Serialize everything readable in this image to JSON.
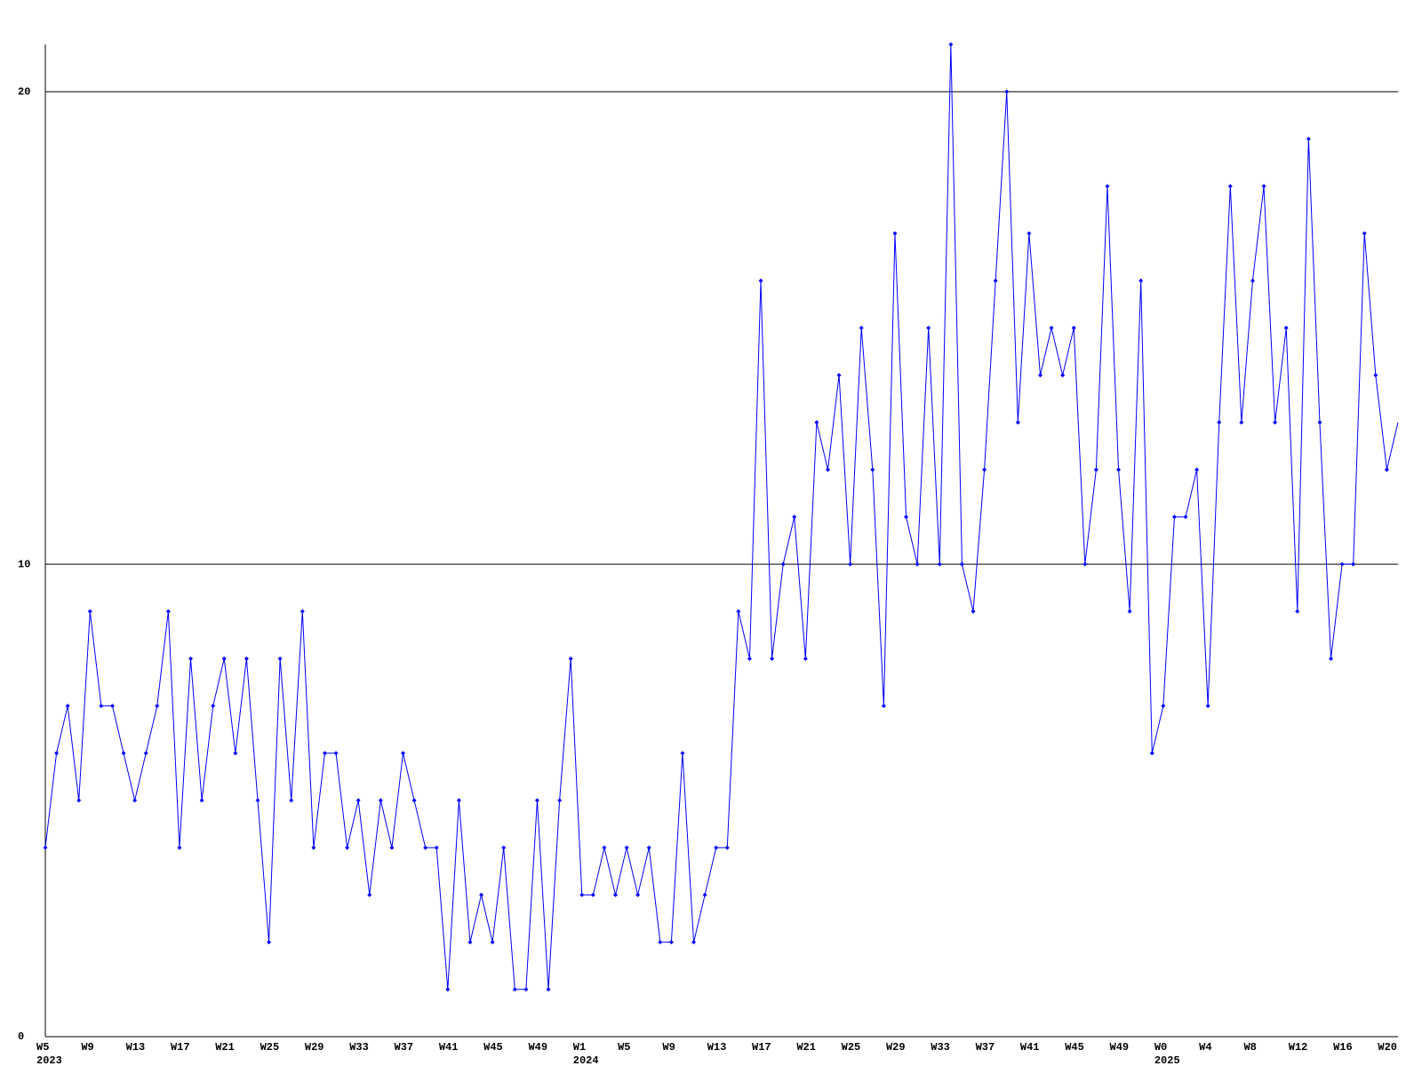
{
  "chart_data": {
    "type": "line",
    "color": "#0000ff",
    "categories": [
      "W5",
      null,
      null,
      null,
      "W9",
      null,
      null,
      null,
      "W13",
      null,
      null,
      null,
      "W17",
      null,
      null,
      null,
      "W21",
      null,
      null,
      null,
      "W25",
      null,
      null,
      null,
      "W29",
      null,
      null,
      null,
      "W33",
      null,
      null,
      null,
      "W37",
      null,
      null,
      null,
      "W41",
      null,
      null,
      null,
      "W45",
      null,
      null,
      null,
      "W49",
      null,
      null,
      null,
      "W1",
      null,
      null,
      null,
      "W5",
      null,
      null,
      null,
      "W9",
      null,
      null,
      null,
      "W13",
      null,
      null,
      null,
      "W17",
      null,
      null,
      null,
      "W21",
      null,
      null,
      null,
      "W25",
      null,
      null,
      null,
      "W29",
      null,
      null,
      null,
      "W33",
      null,
      null,
      null,
      "W37",
      null,
      null,
      null,
      "W41",
      null,
      null,
      null,
      "W45",
      null,
      null,
      null,
      "W49",
      null,
      null,
      null,
      "W0",
      null,
      null,
      null,
      "W4",
      null,
      null,
      null,
      "W8",
      null,
      null,
      null,
      "W12",
      null,
      null,
      null,
      "W16",
      null,
      null,
      null,
      "W20",
      null
    ],
    "category_years": [
      "2023",
      null,
      null,
      null,
      null,
      null,
      null,
      null,
      null,
      null,
      null,
      null,
      null,
      null,
      null,
      null,
      null,
      null,
      null,
      null,
      null,
      null,
      null,
      null,
      null,
      null,
      null,
      null,
      null,
      null,
      null,
      null,
      null,
      null,
      null,
      null,
      null,
      null,
      null,
      null,
      null,
      null,
      null,
      null,
      null,
      null,
      null,
      null,
      "2024",
      null,
      null,
      null,
      null,
      null,
      null,
      null,
      null,
      null,
      null,
      null,
      null,
      null,
      null,
      null,
      null,
      null,
      null,
      null,
      null,
      null,
      null,
      null,
      null,
      null,
      null,
      null,
      null,
      null,
      null,
      null,
      null,
      null,
      null,
      null,
      null,
      null,
      null,
      null,
      null,
      null,
      null,
      null,
      null,
      null,
      null,
      null,
      null,
      null,
      null,
      null,
      "2025",
      null,
      null,
      null,
      null,
      null,
      null,
      null,
      null,
      null,
      null,
      null,
      null,
      null,
      null,
      null,
      null,
      null,
      null,
      null,
      null
    ],
    "values": [
      4,
      6,
      7,
      5,
      9,
      7,
      7,
      6,
      5,
      6,
      7,
      9,
      4,
      8,
      5,
      7,
      8,
      6,
      8,
      5,
      2,
      8,
      5,
      9,
      4,
      6,
      6,
      4,
      5,
      3,
      5,
      4,
      6,
      5,
      4,
      4,
      1,
      5,
      2,
      3,
      2,
      4,
      1,
      1,
      5,
      1,
      5,
      8,
      3,
      3,
      4,
      3,
      4,
      3,
      4,
      2,
      2,
      6,
      2,
      3,
      4,
      4,
      9,
      8,
      16,
      8,
      10,
      11,
      8,
      13,
      12,
      14,
      10,
      15,
      12,
      7,
      17,
      11,
      10,
      15,
      10,
      21,
      10,
      9,
      12,
      16,
      20,
      13,
      17,
      14,
      15,
      14,
      15,
      10,
      12,
      18,
      12,
      9,
      16,
      6,
      7,
      11,
      11,
      12,
      7,
      13,
      18,
      13,
      16,
      18,
      13,
      15,
      9,
      19,
      13,
      8,
      10,
      10,
      17,
      14,
      12,
      13
    ],
    "ylim": [
      0,
      21
    ],
    "yticks": [
      0,
      10,
      20
    ],
    "grid": true
  }
}
